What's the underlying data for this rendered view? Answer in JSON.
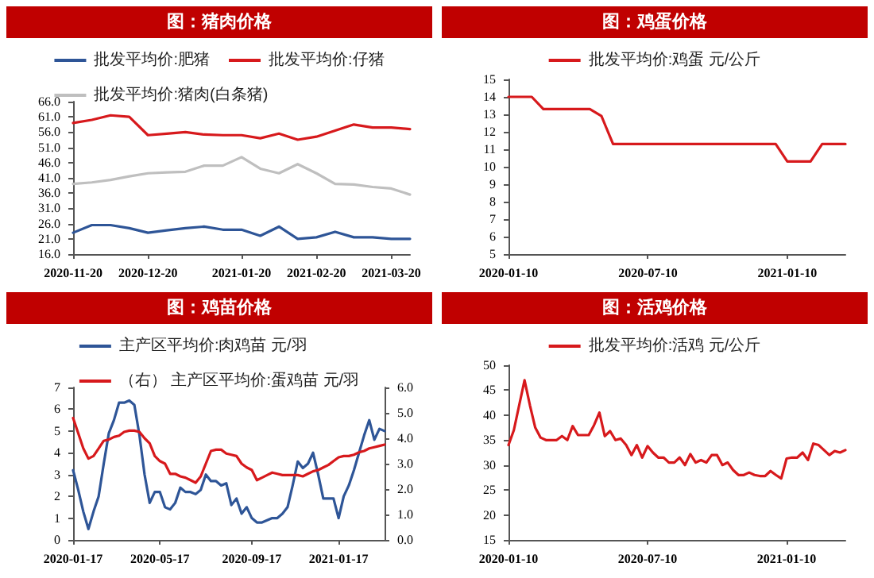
{
  "chart_data": [
    {
      "type": "line",
      "title": "图：猪肉价格",
      "legend": "top",
      "categories": [
        "2020-11-20",
        null,
        null,
        null,
        "2020-12-20",
        null,
        null,
        null,
        null,
        "2021-01-20",
        null,
        null,
        null,
        "2021-02-20",
        null,
        null,
        null,
        "2021-03-20",
        null
      ],
      "ylim": [
        16,
        66
      ],
      "yticks": [
        {
          "value": 16,
          "label": "16.0"
        },
        {
          "value": 21,
          "label": "21.0"
        },
        {
          "value": 26,
          "label": "26.0"
        },
        {
          "value": 31,
          "label": "31.0"
        },
        {
          "value": 36,
          "label": "36.0"
        },
        {
          "value": 41,
          "label": "41.0"
        },
        {
          "value": 46,
          "label": "46.0"
        },
        {
          "value": 51,
          "label": "51.0"
        },
        {
          "value": 56,
          "label": "56.0"
        },
        {
          "value": 61,
          "label": "61.0"
        },
        {
          "value": 66,
          "label": "66.0"
        }
      ],
      "series": [
        {
          "name": "批发平均价:肥猪",
          "color": "#2e5597",
          "values": [
            23,
            25.5,
            25.5,
            24.5,
            23,
            23.8,
            24.5,
            25,
            24,
            24,
            22,
            25,
            21,
            21.5,
            23.3,
            21.5,
            21.5,
            21,
            21
          ]
        },
        {
          "name": "批发平均价:仔猪",
          "color": "#d7191c",
          "values": [
            59,
            60,
            61.5,
            61,
            55,
            55.5,
            56,
            55.2,
            55,
            55,
            54,
            55.5,
            53.5,
            54.5,
            56.5,
            58.5,
            57.5,
            57.5,
            57
          ]
        },
        {
          "name": "批发平均价:猪肉(白条猪)",
          "color": "#bfbfbf",
          "values": [
            39,
            39.5,
            40.3,
            41.5,
            42.5,
            42.8,
            43,
            45,
            45,
            47.8,
            44,
            42.5,
            45.5,
            42.5,
            39,
            38.8,
            38,
            37.5,
            35.5
          ]
        }
      ]
    },
    {
      "type": "line",
      "title": "图：鸡蛋价格",
      "legend": "top",
      "categories": [
        "2020-01-10",
        null,
        null,
        null,
        null,
        null,
        null,
        null,
        null,
        null,
        null,
        null,
        "2020-07-10",
        null,
        null,
        null,
        null,
        null,
        null,
        null,
        null,
        null,
        null,
        null,
        "2021-01-10",
        null,
        null,
        null,
        null,
        null
      ],
      "ylim": [
        5,
        15
      ],
      "yticks": [
        5,
        6,
        7,
        8,
        9,
        10,
        11,
        12,
        13,
        14,
        15
      ],
      "series": [
        {
          "name": "批发平均价:鸡蛋 元/公斤",
          "color": "#d7191c",
          "values": [
            14,
            14,
            14,
            13.3,
            13.3,
            13.3,
            13.3,
            13.3,
            12.9,
            11.3,
            11.3,
            11.3,
            11.3,
            11.3,
            11.3,
            11.3,
            11.3,
            11.3,
            11.3,
            11.3,
            11.3,
            11.3,
            11.3,
            11.3,
            10.3,
            10.3,
            10.3,
            11.3,
            11.3,
            11.3
          ]
        }
      ]
    },
    {
      "type": "line",
      "title": "图：鸡苗价格",
      "legend": "top",
      "categories": [
        "2020-01-17",
        null,
        null,
        null,
        null,
        null,
        null,
        null,
        null,
        null,
        null,
        null,
        null,
        null,
        null,
        null,
        null,
        "2020-05-17",
        null,
        null,
        null,
        null,
        null,
        null,
        null,
        null,
        null,
        null,
        null,
        null,
        null,
        null,
        null,
        null,
        null,
        "2020-09-17",
        null,
        null,
        null,
        null,
        null,
        null,
        null,
        null,
        null,
        null,
        null,
        null,
        null,
        null,
        null,
        null,
        "2021-01-17",
        null,
        null,
        null,
        null,
        null,
        null,
        null,
        null,
        null
      ],
      "ylim": [
        0,
        7
      ],
      "yticks": [
        0,
        1,
        2,
        3,
        4,
        5,
        6,
        7
      ],
      "y2lim": [
        0,
        6
      ],
      "y2ticks": [
        {
          "value": 0,
          "label": "0.0"
        },
        {
          "value": 1,
          "label": "1.0"
        },
        {
          "value": 2,
          "label": "2.0"
        },
        {
          "value": 3,
          "label": "3.0"
        },
        {
          "value": 4,
          "label": "4.0"
        },
        {
          "value": 5,
          "label": "5.0"
        },
        {
          "value": 6,
          "label": "6.0"
        }
      ],
      "series": [
        {
          "name": "主产区平均价:肉鸡苗 元/羽",
          "color": "#2e5597",
          "values": [
            3.2,
            2.3,
            1.3,
            0.5,
            1.3,
            2.0,
            3.5,
            4.9,
            5.5,
            6.3,
            6.3,
            6.4,
            6.2,
            4.8,
            3.0,
            1.7,
            2.2,
            2.2,
            1.5,
            1.4,
            1.7,
            2.4,
            2.2,
            2.2,
            2.1,
            2.3,
            3.0,
            2.7,
            2.7,
            2.5,
            2.6,
            1.6,
            1.9,
            1.2,
            1.5,
            1.0,
            0.8,
            0.8,
            0.9,
            1.0,
            1.0,
            1.2,
            1.5,
            2.5,
            3.6,
            3.3,
            3.5,
            4.0,
            3.0,
            1.9,
            1.9,
            1.9,
            1.0,
            2.0,
            2.5,
            3.2,
            4.0,
            4.8,
            5.5,
            4.6,
            5.1,
            5.0
          ]
        },
        {
          "name": "（右） 主产区平均价:蛋鸡苗 元/羽",
          "color": "#d7191c",
          "axis": "y2",
          "values": [
            4.8,
            4.2,
            3.6,
            3.2,
            3.3,
            3.6,
            3.9,
            3.95,
            4.05,
            4.1,
            4.25,
            4.3,
            4.3,
            4.25,
            4.0,
            3.8,
            3.3,
            3.1,
            3.0,
            2.6,
            2.6,
            2.5,
            2.45,
            2.35,
            2.25,
            2.5,
            3.0,
            3.5,
            3.55,
            3.55,
            3.4,
            3.35,
            3.3,
            3.0,
            2.85,
            2.75,
            2.35,
            2.45,
            2.55,
            2.65,
            2.6,
            2.55,
            2.55,
            2.55,
            2.55,
            2.5,
            2.6,
            2.7,
            2.75,
            2.85,
            2.95,
            3.1,
            3.25,
            3.3,
            3.3,
            3.35,
            3.45,
            3.5,
            3.6,
            3.65,
            3.7,
            3.75
          ]
        }
      ]
    },
    {
      "type": "line",
      "title": "图：活鸡价格",
      "legend": "top",
      "categories": [
        "2020-01-10",
        null,
        null,
        null,
        null,
        null,
        null,
        null,
        null,
        null,
        null,
        null,
        null,
        null,
        null,
        null,
        null,
        null,
        null,
        null,
        null,
        null,
        null,
        null,
        null,
        null,
        "2020-07-10",
        null,
        null,
        null,
        null,
        null,
        null,
        null,
        null,
        null,
        null,
        null,
        null,
        null,
        null,
        null,
        null,
        null,
        null,
        null,
        null,
        null,
        null,
        null,
        null,
        null,
        "2021-01-10",
        null,
        null,
        null,
        null,
        null,
        null,
        null,
        null,
        null,
        null,
        null
      ],
      "ylim": [
        15,
        50
      ],
      "yticks": [
        15,
        20,
        25,
        30,
        35,
        40,
        45,
        50
      ],
      "series": [
        {
          "name": "批发平均价:活鸡 元/公斤",
          "color": "#d7191c",
          "values": [
            34,
            37,
            42,
            47,
            42,
            37.5,
            35.5,
            35,
            35,
            35,
            35.8,
            35,
            37.8,
            36,
            36,
            36,
            38,
            40.5,
            35.8,
            36.8,
            35,
            35.3,
            34,
            32,
            34,
            31.5,
            33.8,
            32.5,
            31.5,
            31.5,
            30.5,
            30.5,
            31.5,
            30,
            32.2,
            30.5,
            31,
            30.5,
            32,
            32,
            30,
            30.5,
            29,
            28,
            28,
            28.5,
            28,
            27.8,
            27.8,
            28.8,
            28,
            27.3,
            31.3,
            31.5,
            31.5,
            32.5,
            31,
            34.3,
            34,
            33,
            32,
            32.8,
            32.5,
            33
          ]
        }
      ]
    }
  ]
}
